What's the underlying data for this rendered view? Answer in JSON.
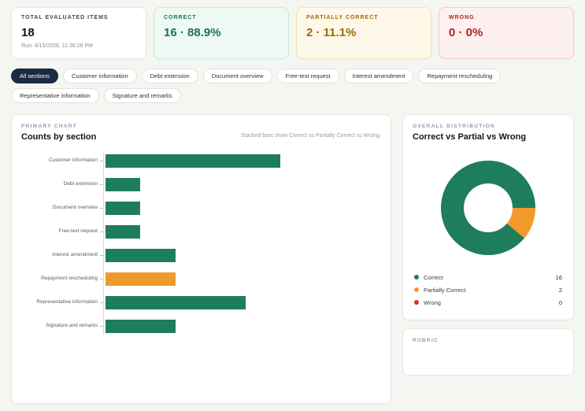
{
  "stats": {
    "items": [
      {
        "label": "TOTAL EVALUATED ITEMS",
        "value": "18",
        "sub": "Run: 4/15/2026, 11:36:26 PM",
        "variant": "neutral"
      },
      {
        "label": "CORRECT",
        "value": "16 · 88.9%",
        "variant": "correct"
      },
      {
        "label": "PARTIALLY CORRECT",
        "value": "2 · 11.1%",
        "variant": "partial"
      },
      {
        "label": "WRONG",
        "value": "0 · 0%",
        "variant": "wrong"
      }
    ]
  },
  "filters": {
    "items": [
      {
        "label": "All sections",
        "active": true
      },
      {
        "label": "Customer information",
        "active": false
      },
      {
        "label": "Debt extension",
        "active": false
      },
      {
        "label": "Document overview",
        "active": false
      },
      {
        "label": "Free-text request",
        "active": false
      },
      {
        "label": "Interest amendment",
        "active": false
      },
      {
        "label": "Repayment rescheduling",
        "active": false
      },
      {
        "label": "Representative information",
        "active": false
      },
      {
        "label": "Signature and remarks",
        "active": false
      }
    ]
  },
  "primary_panel": {
    "eyebrow": "PRIMARY CHART",
    "title": "Counts by section",
    "note": "Stacked bars show Correct vs Partially Correct vs Wrong."
  },
  "distribution_panel": {
    "eyebrow": "OVERALL DISTRIBUTION",
    "title": "Correct vs Partial vs Wrong",
    "legend": [
      {
        "label": "Correct",
        "value": "16",
        "color": "#1e7d5a"
      },
      {
        "label": "Partially Correct",
        "value": "2",
        "color": "#f09a2c"
      },
      {
        "label": "Wrong",
        "value": "0",
        "color": "#d0342c"
      }
    ]
  },
  "rubric_panel": {
    "eyebrow": "RUBRIC"
  },
  "colors": {
    "green": "#1e7d5a",
    "orange": "#f09a2c",
    "red": "#d0342c",
    "navy": "#1a2b42"
  },
  "chart_data": [
    {
      "type": "bar",
      "orientation": "horizontal",
      "title": "Counts by section",
      "categories": [
        "Customer information",
        "Debt extension",
        "Document overview",
        "Free-text request",
        "Interest amendment",
        "Repayment rescheduling",
        "Representative information",
        "Signature and remarks"
      ],
      "series": [
        {
          "name": "Correct",
          "color": "#1e7d5a",
          "values": [
            5,
            1,
            1,
            1,
            2,
            0,
            4,
            2
          ]
        },
        {
          "name": "Partially Correct",
          "color": "#f09a2c",
          "values": [
            0,
            0,
            0,
            0,
            0,
            2,
            0,
            0
          ]
        },
        {
          "name": "Wrong",
          "color": "#d0342c",
          "values": [
            0,
            0,
            0,
            0,
            0,
            0,
            0,
            0
          ]
        }
      ],
      "xlim": [
        0,
        5
      ],
      "bar_value_labels": [
        5,
        1,
        1,
        1,
        2,
        2,
        4,
        2
      ],
      "legend_position": "none",
      "grid": false
    },
    {
      "type": "pie",
      "title": "Correct vs Partial vs Wrong",
      "labels": [
        "Correct",
        "Partially Correct",
        "Wrong"
      ],
      "values": [
        16,
        2,
        0
      ],
      "colors": [
        "#1e7d5a",
        "#f09a2c",
        "#d0342c"
      ],
      "donut": true,
      "legend_position": "bottom"
    }
  ]
}
